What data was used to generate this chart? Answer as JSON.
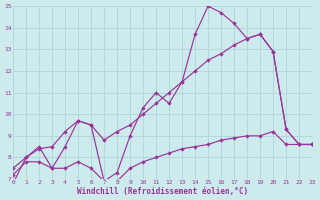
{
  "line1": {
    "x": [
      0,
      1,
      2,
      3,
      4,
      5,
      6,
      7,
      8,
      9,
      10,
      11,
      12,
      13,
      14,
      15,
      16,
      17,
      18,
      19,
      20,
      21,
      22,
      23
    ],
    "y": [
      6.8,
      8.0,
      8.5,
      7.5,
      8.5,
      9.7,
      9.5,
      6.9,
      7.3,
      9.0,
      10.3,
      11.0,
      10.5,
      11.5,
      13.7,
      15.0,
      14.7,
      14.2,
      13.5,
      13.7,
      12.9,
      9.3,
      8.6,
      8.6
    ]
  },
  "line2": {
    "x": [
      0,
      1,
      2,
      3,
      4,
      5,
      6,
      7,
      8,
      9,
      10,
      11,
      12,
      13,
      14,
      15,
      16,
      17,
      18,
      19,
      20,
      21,
      22,
      23
    ],
    "y": [
      7.5,
      8.0,
      8.4,
      8.5,
      9.2,
      9.7,
      9.5,
      8.8,
      9.2,
      9.5,
      10.0,
      10.5,
      11.0,
      11.5,
      12.0,
      12.5,
      12.8,
      13.2,
      13.5,
      13.7,
      12.9,
      9.3,
      8.6,
      8.6
    ]
  },
  "line3": {
    "x": [
      0,
      1,
      2,
      3,
      4,
      5,
      6,
      7,
      8,
      9,
      10,
      11,
      12,
      13,
      14,
      15,
      16,
      17,
      18,
      19,
      20,
      21,
      22,
      23
    ],
    "y": [
      7.2,
      7.8,
      7.8,
      7.5,
      7.5,
      7.8,
      7.5,
      6.9,
      6.9,
      7.5,
      7.8,
      8.0,
      8.2,
      8.4,
      8.5,
      8.6,
      8.8,
      8.9,
      9.0,
      9.0,
      9.2,
      8.6,
      8.6,
      8.6
    ]
  },
  "color": "#993399",
  "bg_color": "#cdeaed",
  "grid_color": "#b0d4d8",
  "xlabel": "Windchill (Refroidissement éolien,°C)",
  "ylim": [
    7,
    15
  ],
  "xlim": [
    0,
    23
  ],
  "yticks": [
    7,
    8,
    9,
    10,
    11,
    12,
    13,
    14,
    15
  ],
  "xticks": [
    0,
    1,
    2,
    3,
    4,
    5,
    6,
    7,
    8,
    9,
    10,
    11,
    12,
    13,
    14,
    15,
    16,
    17,
    18,
    19,
    20,
    21,
    22,
    23
  ]
}
